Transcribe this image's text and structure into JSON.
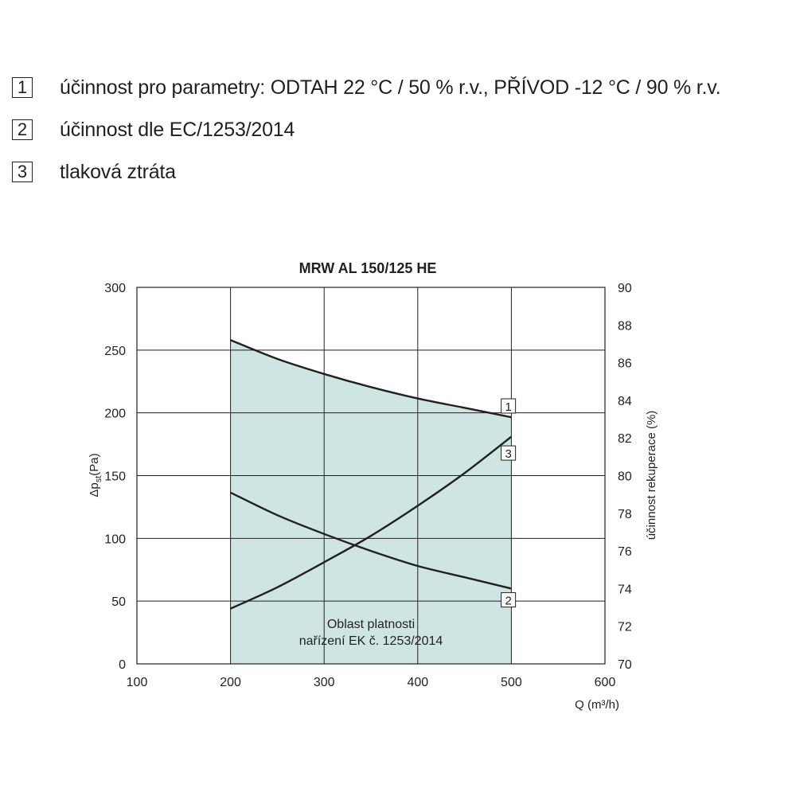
{
  "legend": [
    {
      "number": "1",
      "text": "účinnost pro parametry: ODTAH 22 °C / 50 % r.v., PŘÍVOD -12 °C / 90 % r.v."
    },
    {
      "number": "2",
      "text": "účinnost dle EC/1253/2014"
    },
    {
      "number": "3",
      "text": "tlaková ztráta"
    }
  ],
  "chart_data": {
    "type": "line",
    "title": "MRW AL 150/125 HE",
    "xlabel": "Q (m³/h)",
    "ylabel": "Δpst(Pa)",
    "ylabel_parts": {
      "delta": "Δ",
      "p": "p",
      "sub": "st",
      "unit": "(Pa)"
    },
    "y2label": "účinnost rekuperace (%)",
    "xlim": [
      100,
      600
    ],
    "ylim": [
      0,
      300
    ],
    "y2lim": [
      70,
      90
    ],
    "x_ticks": [
      "100",
      "200",
      "300",
      "400",
      "500",
      "600"
    ],
    "y_ticks": [
      "0",
      "50",
      "100",
      "150",
      "200",
      "250",
      "300"
    ],
    "y2_ticks": [
      "70",
      "72",
      "74",
      "76",
      "78",
      "80",
      "82",
      "84",
      "86",
      "88",
      "90"
    ],
    "grid": true,
    "valid_region": {
      "x_range": [
        200,
        500
      ],
      "fill_color": "#cfe5e3",
      "label_lines": [
        "Oblast platnosti",
        "nařízení EK č. 1253/2014"
      ]
    },
    "series": [
      {
        "label": "1",
        "axis": "right",
        "x": [
          200,
          250,
          300,
          350,
          400,
          450,
          500
        ],
        "y": [
          87.2,
          86.2,
          85.4,
          84.7,
          84.1,
          83.6,
          83.1
        ]
      },
      {
        "label": "2",
        "axis": "right",
        "x": [
          200,
          250,
          300,
          350,
          400,
          450,
          500
        ],
        "y": [
          79.1,
          77.9,
          76.9,
          76.0,
          75.2,
          74.6,
          74.0
        ]
      },
      {
        "label": "3",
        "axis": "left",
        "x": [
          200,
          250,
          300,
          350,
          400,
          450,
          500
        ],
        "y": [
          44,
          61,
          81,
          102,
          126,
          152,
          181
        ]
      }
    ],
    "series_label_positions": [
      {
        "label": "1",
        "x": 490,
        "y_right": 83.7
      },
      {
        "label": "3",
        "x": 490,
        "y_right": 81.2
      },
      {
        "label": "2",
        "x": 490,
        "y_right": 73.4
      }
    ]
  }
}
